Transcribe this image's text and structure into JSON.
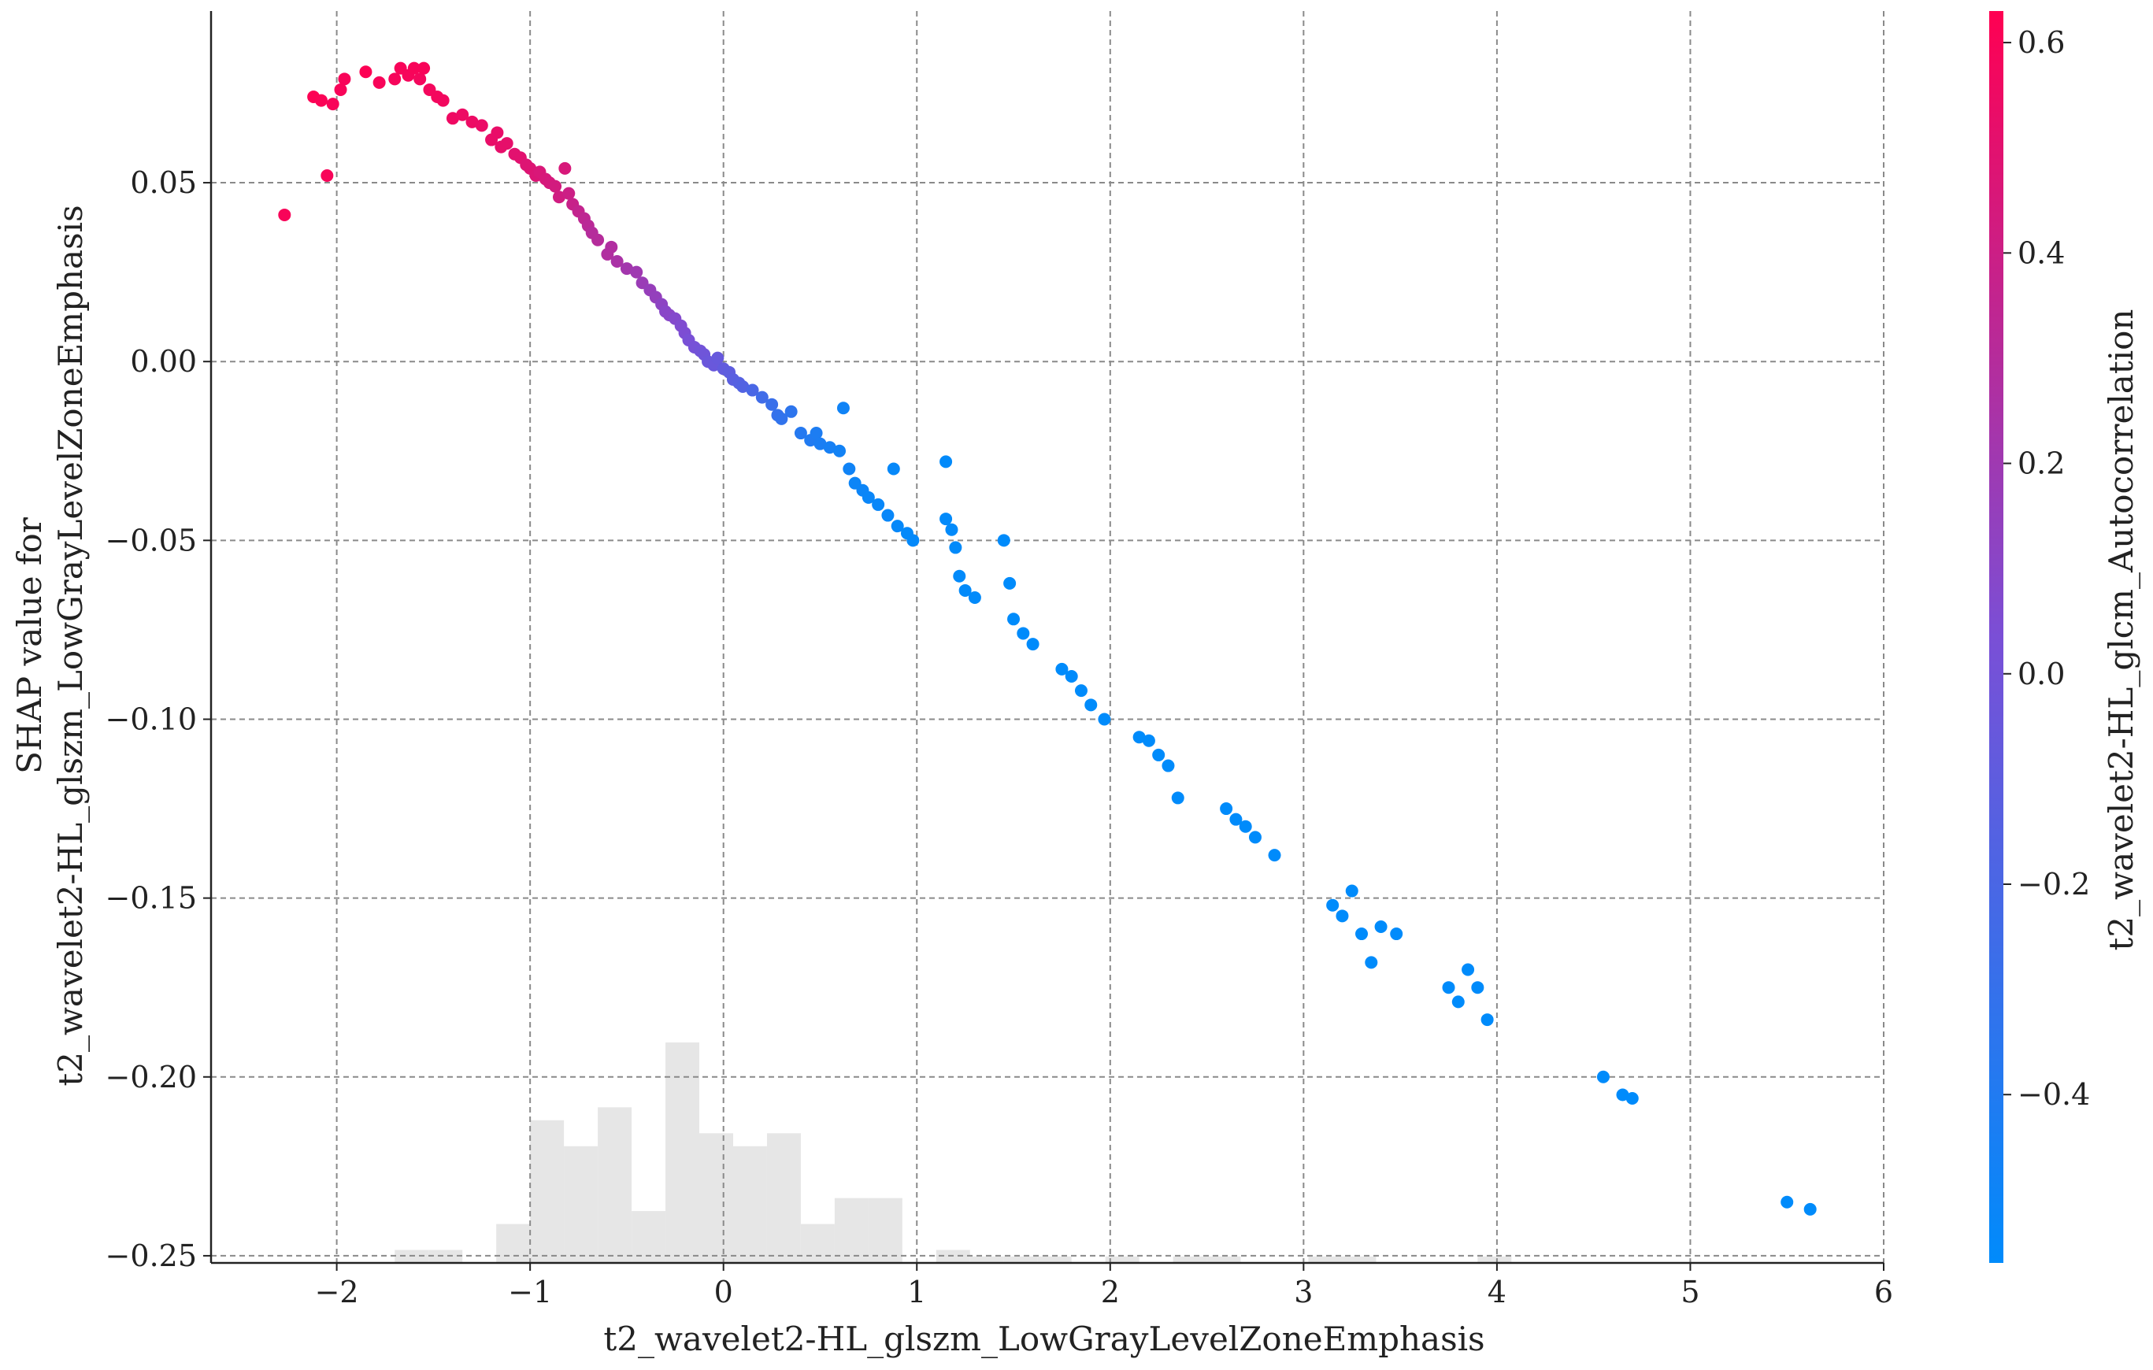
{
  "chart_data": {
    "type": "scatter",
    "title": "",
    "xlabel": "t2_wavelet2-HL_glszm_LowGrayLevelZoneEmphasis",
    "ylabel_lines": [
      "SHAP value for",
      "t2_wavelet2-HL_glszm_LowGrayLevelZoneEmphasis"
    ],
    "xlim": [
      -2.65,
      6.0
    ],
    "ylim": [
      -0.252,
      0.098
    ],
    "x_ticks": [
      -2,
      -1,
      0,
      1,
      2,
      3,
      4,
      5,
      6
    ],
    "x_tick_labels": [
      "−2",
      "−1",
      "0",
      "1",
      "2",
      "3",
      "4",
      "5",
      "6"
    ],
    "y_ticks": [
      0.05,
      0.0,
      -0.05,
      -0.1,
      -0.15,
      -0.2,
      -0.25
    ],
    "y_tick_labels": [
      "0.05",
      "0.00",
      "−0.05",
      "−0.10",
      "−0.15",
      "−0.20",
      "−0.25"
    ],
    "grid": true,
    "colorbar": {
      "label": "t2_wavelet2-HL_glcm_Autocorrelation",
      "range": [
        -0.56,
        0.63
      ],
      "ticks": [
        0.6,
        0.4,
        0.2,
        0.0,
        -0.2,
        -0.4
      ],
      "tick_labels": [
        "0.6",
        "0.4",
        "0.2",
        "0.0",
        "−0.2",
        "−0.4"
      ],
      "low_color": "#008bfb",
      "mid_color": "#7a4fd6",
      "high_color": "#ff0052"
    },
    "histogram": {
      "color": "#e6e6e6",
      "bin_edges": [
        -1.7,
        -1.525,
        -1.35,
        -1.175,
        -1.0,
        -0.825,
        -0.65,
        -0.475,
        -0.3,
        -0.125,
        0.05,
        0.225,
        0.4,
        0.575,
        0.75,
        0.925,
        1.1,
        1.275,
        1.45,
        1.625,
        1.8,
        1.975,
        2.15,
        2.325,
        2.5,
        2.675,
        2.85,
        3.025,
        3.2,
        3.375,
        3.55,
        3.725,
        3.9,
        4.075
      ],
      "counts": [
        1,
        1,
        0,
        3,
        11,
        9,
        12,
        4,
        17,
        10,
        9,
        10,
        3,
        5,
        5,
        0,
        1,
        0.5,
        0.5,
        0.5,
        0,
        0.5,
        0,
        0.5,
        0.5,
        0,
        0,
        0.5,
        0.5,
        0,
        0,
        0,
        0.5
      ],
      "count_max": 17
    },
    "points": [
      [
        -2.27,
        0.041,
        0.6
      ],
      [
        -2.05,
        0.052,
        0.6
      ],
      [
        -2.12,
        0.074,
        0.62
      ],
      [
        -2.08,
        0.073,
        0.61
      ],
      [
        -2.02,
        0.072,
        0.6
      ],
      [
        -1.98,
        0.076,
        0.6
      ],
      [
        -1.96,
        0.079,
        0.6
      ],
      [
        -1.85,
        0.081,
        0.62
      ],
      [
        -1.78,
        0.078,
        0.6
      ],
      [
        -1.7,
        0.079,
        0.59
      ],
      [
        -1.67,
        0.082,
        0.6
      ],
      [
        -1.63,
        0.08,
        0.59
      ],
      [
        -1.6,
        0.082,
        0.6
      ],
      [
        -1.57,
        0.079,
        0.58
      ],
      [
        -1.55,
        0.082,
        0.6
      ],
      [
        -1.52,
        0.076,
        0.58
      ],
      [
        -1.48,
        0.074,
        0.58
      ],
      [
        -1.45,
        0.073,
        0.57
      ],
      [
        -1.4,
        0.068,
        0.56
      ],
      [
        -1.35,
        0.069,
        0.55
      ],
      [
        -1.3,
        0.067,
        0.55
      ],
      [
        -1.25,
        0.066,
        0.54
      ],
      [
        -1.2,
        0.062,
        0.53
      ],
      [
        -1.17,
        0.064,
        0.53
      ],
      [
        -1.15,
        0.06,
        0.52
      ],
      [
        -1.12,
        0.061,
        0.52
      ],
      [
        -1.08,
        0.058,
        0.5
      ],
      [
        -1.05,
        0.057,
        0.5
      ],
      [
        -1.02,
        0.055,
        0.48
      ],
      [
        -1.0,
        0.054,
        0.48
      ],
      [
        -0.97,
        0.052,
        0.47
      ],
      [
        -0.95,
        0.053,
        0.46
      ],
      [
        -0.92,
        0.051,
        0.45
      ],
      [
        -0.9,
        0.05,
        0.44
      ],
      [
        -0.87,
        0.049,
        0.43
      ],
      [
        -0.85,
        0.046,
        0.42
      ],
      [
        -0.8,
        0.047,
        0.4
      ],
      [
        -0.78,
        0.044,
        0.38
      ],
      [
        -0.82,
        0.054,
        0.45
      ],
      [
        -0.75,
        0.042,
        0.36
      ],
      [
        -0.72,
        0.04,
        0.34
      ],
      [
        -0.7,
        0.038,
        0.32
      ],
      [
        -0.68,
        0.036,
        0.3
      ],
      [
        -0.65,
        0.034,
        0.3
      ],
      [
        -0.6,
        0.03,
        0.28
      ],
      [
        -0.58,
        0.032,
        0.28
      ],
      [
        -0.55,
        0.028,
        0.25
      ],
      [
        -0.5,
        0.026,
        0.22
      ],
      [
        -0.45,
        0.025,
        0.2
      ],
      [
        -0.42,
        0.022,
        0.18
      ],
      [
        -0.38,
        0.02,
        0.16
      ],
      [
        -0.35,
        0.018,
        0.15
      ],
      [
        -0.32,
        0.016,
        0.12
      ],
      [
        -0.3,
        0.014,
        0.1
      ],
      [
        -0.28,
        0.013,
        0.1
      ],
      [
        -0.25,
        0.012,
        0.08
      ],
      [
        -0.22,
        0.01,
        0.06
      ],
      [
        -0.2,
        0.008,
        0.05
      ],
      [
        -0.18,
        0.006,
        0.03
      ],
      [
        -0.15,
        0.004,
        0.02
      ],
      [
        -0.12,
        0.003,
        0.0
      ],
      [
        -0.1,
        0.002,
        -0.02
      ],
      [
        -0.08,
        0.0,
        -0.04
      ],
      [
        -0.05,
        -0.001,
        -0.05
      ],
      [
        -0.03,
        0.001,
        -0.06
      ],
      [
        0.0,
        -0.002,
        -0.08
      ],
      [
        0.03,
        -0.003,
        -0.1
      ],
      [
        0.05,
        -0.005,
        -0.12
      ],
      [
        0.08,
        -0.006,
        -0.14
      ],
      [
        0.1,
        -0.007,
        -0.16
      ],
      [
        0.15,
        -0.008,
        -0.2
      ],
      [
        0.2,
        -0.01,
        -0.25
      ],
      [
        0.25,
        -0.012,
        -0.28
      ],
      [
        0.28,
        -0.015,
        -0.3
      ],
      [
        0.3,
        -0.016,
        -0.32
      ],
      [
        0.35,
        -0.014,
        -0.34
      ],
      [
        0.4,
        -0.02,
        -0.38
      ],
      [
        0.45,
        -0.022,
        -0.4
      ],
      [
        0.48,
        -0.02,
        -0.42
      ],
      [
        0.5,
        -0.023,
        -0.43
      ],
      [
        0.55,
        -0.024,
        -0.45
      ],
      [
        0.6,
        -0.025,
        -0.47
      ],
      [
        0.62,
        -0.013,
        -0.48
      ],
      [
        0.65,
        -0.03,
        -0.48
      ],
      [
        0.68,
        -0.034,
        -0.5
      ],
      [
        0.72,
        -0.036,
        -0.5
      ],
      [
        0.75,
        -0.038,
        -0.51
      ],
      [
        0.8,
        -0.04,
        -0.52
      ],
      [
        0.85,
        -0.043,
        -0.52
      ],
      [
        0.88,
        -0.03,
        -0.53
      ],
      [
        0.9,
        -0.046,
        -0.53
      ],
      [
        0.95,
        -0.048,
        -0.54
      ],
      [
        0.98,
        -0.05,
        -0.54
      ],
      [
        1.15,
        -0.044,
        -0.55
      ],
      [
        1.18,
        -0.047,
        -0.55
      ],
      [
        1.2,
        -0.052,
        -0.55
      ],
      [
        1.22,
        -0.06,
        -0.55
      ],
      [
        1.25,
        -0.064,
        -0.55
      ],
      [
        1.3,
        -0.066,
        -0.55
      ],
      [
        1.15,
        -0.028,
        -0.55
      ],
      [
        1.45,
        -0.05,
        -0.56
      ],
      [
        1.48,
        -0.062,
        -0.56
      ],
      [
        1.5,
        -0.072,
        -0.56
      ],
      [
        1.55,
        -0.076,
        -0.56
      ],
      [
        1.6,
        -0.079,
        -0.56
      ],
      [
        1.75,
        -0.086,
        -0.56
      ],
      [
        1.8,
        -0.088,
        -0.56
      ],
      [
        1.85,
        -0.092,
        -0.56
      ],
      [
        1.9,
        -0.096,
        -0.56
      ],
      [
        1.97,
        -0.1,
        -0.56
      ],
      [
        2.15,
        -0.105,
        -0.56
      ],
      [
        2.2,
        -0.106,
        -0.56
      ],
      [
        2.25,
        -0.11,
        -0.56
      ],
      [
        2.3,
        -0.113,
        -0.56
      ],
      [
        2.35,
        -0.122,
        -0.56
      ],
      [
        2.6,
        -0.125,
        -0.56
      ],
      [
        2.65,
        -0.128,
        -0.56
      ],
      [
        2.7,
        -0.13,
        -0.56
      ],
      [
        2.75,
        -0.133,
        -0.56
      ],
      [
        2.85,
        -0.138,
        -0.56
      ],
      [
        3.15,
        -0.152,
        -0.56
      ],
      [
        3.2,
        -0.155,
        -0.56
      ],
      [
        3.25,
        -0.148,
        -0.56
      ],
      [
        3.3,
        -0.16,
        -0.56
      ],
      [
        3.35,
        -0.168,
        -0.56
      ],
      [
        3.4,
        -0.158,
        -0.56
      ],
      [
        3.48,
        -0.16,
        -0.56
      ],
      [
        3.75,
        -0.175,
        -0.56
      ],
      [
        3.8,
        -0.179,
        -0.56
      ],
      [
        3.85,
        -0.17,
        -0.56
      ],
      [
        3.9,
        -0.175,
        -0.56
      ],
      [
        3.95,
        -0.184,
        -0.56
      ],
      [
        4.55,
        -0.2,
        -0.56
      ],
      [
        4.65,
        -0.205,
        -0.56
      ],
      [
        4.7,
        -0.206,
        -0.56
      ],
      [
        5.5,
        -0.235,
        -0.56
      ],
      [
        5.62,
        -0.237,
        -0.56
      ]
    ]
  }
}
